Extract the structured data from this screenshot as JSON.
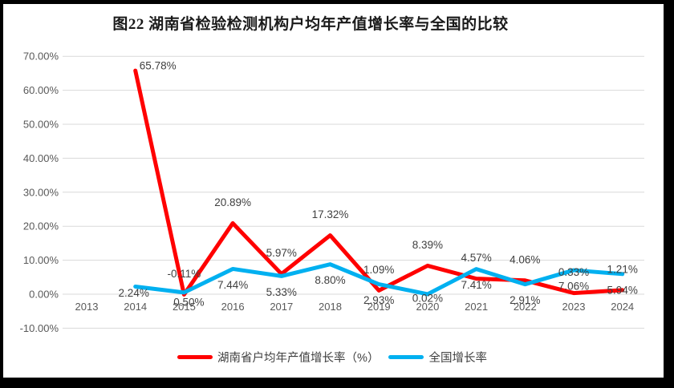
{
  "title": "图22 湖南省检验检测机构户均年产值增长率与全国的比较",
  "colors": {
    "frame": "#000000",
    "background": "#FFFFFF",
    "gridline": "#D9D9D9",
    "axis_text": "#595959",
    "label_text": "#404040",
    "series_hunan": "#FF0000",
    "series_national": "#00B0F0"
  },
  "chart_data": {
    "type": "line",
    "categories": [
      "2013",
      "2014",
      "2015",
      "2016",
      "2017",
      "2018",
      "2019",
      "2020",
      "2021",
      "2022",
      "2023",
      "2024"
    ],
    "series": [
      {
        "name": "湖南省户均年产值增长率（%）",
        "color": "#FF0000",
        "values": [
          null,
          65.78,
          -0.11,
          20.89,
          5.97,
          17.32,
          1.09,
          8.39,
          4.57,
          4.06,
          0.33,
          1.21
        ],
        "labels": [
          "",
          "65.78%",
          "-0.11%",
          "20.89%",
          "5.97%",
          "17.32%",
          "1.09%",
          "8.39%",
          "4.57%",
          "4.06%",
          "0.33%",
          "1.21%"
        ],
        "label_position": "above"
      },
      {
        "name": "全国增长率",
        "color": "#00B0F0",
        "values": [
          null,
          2.24,
          0.5,
          7.44,
          5.33,
          8.8,
          2.93,
          0.02,
          7.41,
          2.91,
          7.06,
          5.94
        ],
        "labels": [
          "",
          "2.24%",
          "0.50%",
          "7.44%",
          "5.33%",
          "8.80%",
          "2.93%",
          "0.02%",
          "7.41%",
          "2.91%",
          "7.06%",
          "5.94%"
        ],
        "label_position": "below"
      }
    ],
    "ylim": [
      -10,
      70
    ],
    "ytick_step": 10,
    "y_tick_labels": [
      "70.00%",
      "60.00%",
      "50.00%",
      "40.00%",
      "30.00%",
      "20.00%",
      "10.00%",
      "0.00%",
      "-10.00%"
    ],
    "grid": true,
    "legend_position": "bottom",
    "label_offsets": [
      {
        "1": [
          28,
          -6
        ]
      },
      {
        "1": [
          -2,
          8
        ],
        "2": [
          6,
          12
        ],
        "7": [
          0,
          5
        ]
      }
    ]
  }
}
